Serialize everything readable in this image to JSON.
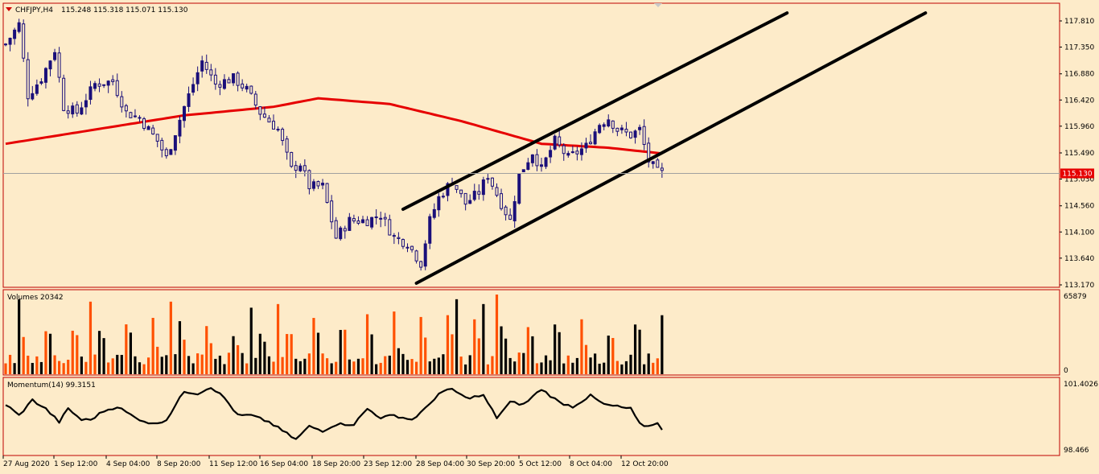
{
  "window": {
    "symbol": "CHFJPY,H4",
    "ohlc": "115.248 115.318 115.071 115.130",
    "current_price": "115.130"
  },
  "colors": {
    "background": "#fdebc9",
    "frame": "#c00000",
    "bull_candle": "#1a0f7a",
    "bear_candle": "#1a0f7a",
    "moving_average": "#e60000",
    "channel_lines": "#000000",
    "volume_up": "#000000",
    "volume_down": "#ff5000",
    "momentum_line": "#000000",
    "price_tag": "#e60000"
  },
  "chart_data": [
    {
      "type": "candlestick",
      "name": "price",
      "y_ticks": [
        "117.810",
        "117.350",
        "116.880",
        "116.420",
        "115.960",
        "115.490",
        "115.030",
        "114.560",
        "114.100",
        "113.640",
        "113.170"
      ],
      "ylim": [
        113.17,
        117.81
      ],
      "x_ticks": [
        "27 Aug 2020",
        "1 Sep 12:00",
        "4 Sep 04:00",
        "8 Sep 20:00",
        "11 Sep 12:00",
        "16 Sep 04:00",
        "18 Sep 20:00",
        "23 Sep 12:00",
        "28 Sep 04:00",
        "30 Sep 20:00",
        "5 Oct 12:00",
        "8 Oct 04:00",
        "12 Oct 20:00"
      ],
      "close_key_points": [
        [
          0,
          117.4
        ],
        [
          3,
          117.75
        ],
        [
          5,
          116.5
        ],
        [
          8,
          116.8
        ],
        [
          11,
          117.3
        ],
        [
          13,
          116.3
        ],
        [
          16,
          116.2
        ],
        [
          20,
          116.7
        ],
        [
          24,
          116.75
        ],
        [
          27,
          116.2
        ],
        [
          30,
          116.1
        ],
        [
          34,
          115.7
        ],
        [
          36,
          115.4
        ],
        [
          40,
          116.3
        ],
        [
          44,
          117.1
        ],
        [
          47,
          116.7
        ],
        [
          51,
          116.8
        ],
        [
          54,
          116.6
        ],
        [
          57,
          116.2
        ],
        [
          61,
          115.9
        ],
        [
          64,
          115.2
        ],
        [
          66,
          115.3
        ],
        [
          68,
          114.9
        ],
        [
          71,
          114.9
        ],
        [
          74,
          114.0
        ],
        [
          77,
          114.3
        ],
        [
          81,
          114.3
        ],
        [
          84,
          114.4
        ],
        [
          87,
          114.0
        ],
        [
          90,
          113.9
        ],
        [
          93,
          113.55
        ],
        [
          95,
          114.3
        ],
        [
          97,
          114.7
        ],
        [
          100,
          115.0
        ],
        [
          103,
          114.6
        ],
        [
          106,
          114.8
        ],
        [
          108,
          115.1
        ],
        [
          111,
          114.6
        ],
        [
          113,
          114.3
        ],
        [
          115,
          115.1
        ],
        [
          118,
          115.5
        ],
        [
          120,
          115.2
        ],
        [
          123,
          115.7
        ],
        [
          126,
          115.4
        ],
        [
          130,
          115.6
        ],
        [
          133,
          116.0
        ],
        [
          135,
          116.1
        ],
        [
          137,
          115.9
        ],
        [
          140,
          115.8
        ],
        [
          142,
          115.9
        ],
        [
          144,
          115.35
        ],
        [
          146,
          115.15
        ],
        [
          147,
          115.13
        ]
      ],
      "moving_average_points": [
        [
          0,
          115.65
        ],
        [
          20,
          115.9
        ],
        [
          40,
          116.15
        ],
        [
          60,
          116.3
        ],
        [
          70,
          116.45
        ],
        [
          86,
          116.35
        ],
        [
          102,
          116.05
        ],
        [
          120,
          115.65
        ],
        [
          135,
          115.58
        ],
        [
          147,
          115.48
        ]
      ],
      "channel_lines": [
        {
          "x1": 89,
          "y1": 114.5,
          "x2": 175,
          "y2": 117.95
        },
        {
          "x1": 92,
          "y1": 113.2,
          "x2": 206,
          "y2": 117.95
        }
      ]
    },
    {
      "type": "bar",
      "name": "Volumes",
      "label": "Volumes 20342",
      "y_ticks": [
        "65879",
        "0"
      ],
      "ylim": [
        0,
        65879
      ],
      "peaks": [
        [
          3,
          62000
        ],
        [
          19,
          60000
        ],
        [
          37,
          60000
        ],
        [
          55,
          55000
        ],
        [
          61,
          58000
        ],
        [
          101,
          62000
        ],
        [
          107,
          58000
        ],
        [
          110,
          65879
        ]
      ]
    },
    {
      "type": "line",
      "name": "Momentum(14)",
      "label": "Momentum(14) 99.3151",
      "y_ticks": [
        "101.4026",
        "98.466"
      ],
      "ylim": [
        98.466,
        101.4026
      ],
      "points": [
        [
          0,
          100.5
        ],
        [
          3,
          100.0
        ],
        [
          6,
          100.7
        ],
        [
          9,
          100.3
        ],
        [
          12,
          99.7
        ],
        [
          14,
          100.3
        ],
        [
          17,
          99.8
        ],
        [
          19,
          99.8
        ],
        [
          22,
          100.2
        ],
        [
          25,
          100.4
        ],
        [
          29,
          99.9
        ],
        [
          33,
          99.6
        ],
        [
          36,
          99.8
        ],
        [
          40,
          101.1
        ],
        [
          43,
          101.0
        ],
        [
          46,
          101.3
        ],
        [
          49,
          100.8
        ],
        [
          52,
          100.0
        ],
        [
          55,
          100.0
        ],
        [
          59,
          99.7
        ],
        [
          62,
          99.3
        ],
        [
          65,
          98.9
        ],
        [
          68,
          99.5
        ],
        [
          71,
          99.3
        ],
        [
          74,
          99.6
        ],
        [
          78,
          99.6
        ],
        [
          81,
          100.3
        ],
        [
          84,
          99.9
        ],
        [
          87,
          100.0
        ],
        [
          91,
          99.8
        ],
        [
          94,
          100.3
        ],
        [
          97,
          101.0
        ],
        [
          100,
          101.2
        ],
        [
          103,
          100.8
        ],
        [
          107,
          100.9
        ],
        [
          110,
          99.9
        ],
        [
          113,
          100.6
        ],
        [
          116,
          100.5
        ],
        [
          120,
          101.2
        ],
        [
          124,
          100.6
        ],
        [
          127,
          100.4
        ],
        [
          131,
          100.9
        ],
        [
          134,
          100.5
        ],
        [
          137,
          100.4
        ],
        [
          140,
          100.3
        ],
        [
          142,
          99.6
        ],
        [
          144,
          99.5
        ],
        [
          146,
          99.7
        ],
        [
          147,
          99.32
        ]
      ]
    }
  ]
}
